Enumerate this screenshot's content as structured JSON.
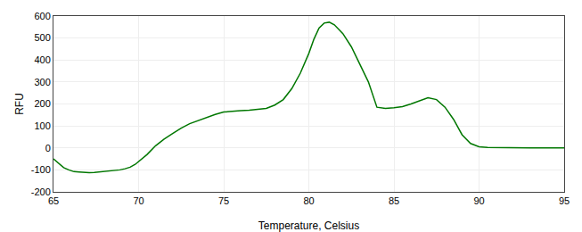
{
  "chart_data": {
    "type": "line",
    "xlabel": "Temperature, Celsius",
    "ylabel": "RFU",
    "x": [
      65.0,
      65.3,
      65.6,
      65.9,
      66.2,
      66.5,
      66.8,
      67.1,
      67.4,
      67.7,
      68.0,
      68.3,
      68.6,
      68.9,
      69.2,
      69.5,
      69.8,
      70.1,
      70.5,
      71.0,
      71.5,
      72.0,
      72.5,
      73.0,
      73.5,
      74.0,
      74.5,
      75.0,
      75.5,
      76.0,
      76.5,
      77.0,
      77.5,
      78.0,
      78.5,
      79.0,
      79.5,
      80.0,
      80.3,
      80.6,
      80.9,
      81.2,
      81.5,
      82.0,
      82.5,
      83.0,
      83.5,
      84.0,
      84.5,
      85.0,
      85.5,
      86.0,
      86.5,
      87.0,
      87.5,
      88.0,
      88.5,
      89.0,
      89.5,
      90.0,
      90.5,
      91.0,
      92.0,
      93.0,
      94.0,
      95.0
    ],
    "values": [
      -50,
      -70,
      -90,
      -100,
      -108,
      -110,
      -112,
      -113,
      -112,
      -110,
      -108,
      -105,
      -103,
      -100,
      -95,
      -88,
      -75,
      -55,
      -30,
      10,
      40,
      65,
      90,
      110,
      125,
      140,
      152,
      163,
      168,
      170,
      172,
      175,
      180,
      195,
      220,
      270,
      340,
      430,
      495,
      545,
      568,
      572,
      560,
      520,
      460,
      380,
      300,
      185,
      180,
      183,
      188,
      200,
      215,
      228,
      220,
      185,
      130,
      60,
      20,
      5,
      2,
      1,
      0,
      0,
      0,
      0
    ],
    "color": "#007700",
    "xlim": [
      65,
      95
    ],
    "ylim": [
      -200,
      600
    ],
    "xticks": [
      65,
      70,
      75,
      80,
      85,
      90,
      95
    ],
    "yticks": [
      -200,
      -100,
      0,
      100,
      200,
      300,
      400,
      500,
      600
    ],
    "grid": true
  }
}
